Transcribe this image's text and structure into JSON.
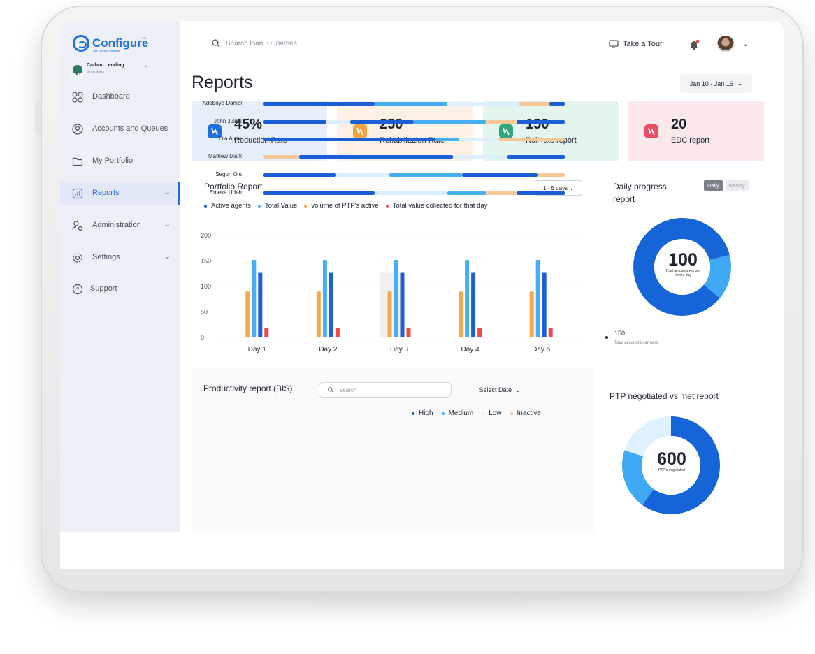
{
  "brand": {
    "name": "Configure",
    "tagline": "Core Lending Platform",
    "tm": "TM"
  },
  "org": {
    "initials": "CB",
    "name": "Carbon Lending",
    "members": "5 members"
  },
  "sidebar": {
    "items": [
      {
        "label": "Dashboard",
        "icon": "grid-icon"
      },
      {
        "label": "Accounts and Queues",
        "icon": "user-circle-icon"
      },
      {
        "label": "My Portfolio",
        "icon": "folder-icon"
      },
      {
        "label": "Reports",
        "icon": "chart-icon",
        "active": true
      },
      {
        "label": "Administration",
        "icon": "admin-icon"
      },
      {
        "label": "Settings",
        "icon": "gear-icon"
      },
      {
        "label": "Support",
        "icon": "help-icon"
      }
    ]
  },
  "header": {
    "search_placeholder": "Search loan ID, names...",
    "tour_label": "Take a Tour"
  },
  "page": {
    "title": "Reports",
    "date_range": "Jan 10 - Jan 16"
  },
  "stats": [
    {
      "value": "45%",
      "label": "Reduction Rate",
      "bg": "#e6eefb",
      "icon_color": "#1e6fe0"
    },
    {
      "value": "250",
      "label": "Rehabilitation Rate",
      "bg": "#fdf1e6",
      "icon_color": "#f4a340"
    },
    {
      "value": "150",
      "label": "Roll rate report",
      "bg": "#e4f5ee",
      "icon_color": "#2ea87a"
    },
    {
      "value": "20",
      "label": "EDC report",
      "bg": "#fbe8ea",
      "icon_color": "#ea4d63"
    }
  ],
  "portfolio": {
    "title": "Portfolio Report",
    "range": "1 - 5 days"
  },
  "chart_data": {
    "type": "bar",
    "title": "Portfolio Report",
    "categories": [
      "Day 1",
      "Day 2",
      "Day 3",
      "Day 4",
      "Day 5"
    ],
    "series": [
      {
        "name": "Active agents",
        "color": "#1e5fd8",
        "values": [
          128,
          128,
          128,
          128,
          128
        ]
      },
      {
        "name": "Total Value",
        "color": "#45aef5",
        "values": [
          152,
          152,
          152,
          152,
          152
        ]
      },
      {
        "name": "volume of PTP's active",
        "color": "#f6a94b",
        "values": [
          90,
          90,
          90,
          90,
          90
        ]
      },
      {
        "name": "Total value collected for that day",
        "color": "#ee4a4a",
        "values": [
          18,
          18,
          18,
          18,
          18
        ]
      }
    ],
    "series_order": [
      2,
      1,
      0,
      3
    ],
    "yticks": [
      "200",
      "150",
      "100",
      "50",
      "0"
    ],
    "ylim": [
      0,
      200
    ],
    "highlight_category": "Day 3",
    "grid": true,
    "legend": "top-left"
  },
  "daily": {
    "title": "Daily progress report",
    "toggle_daily": "Daily",
    "toggle_weekly": "weekly",
    "center_value": "100",
    "center_label": "Total accounts worked for the day",
    "share_main": 0.85,
    "share_secondary": 0.15,
    "color_main": "#1565d8",
    "color_secondary": "#3fa9f5",
    "stat_value": "150",
    "stat_label": "Total account in arrears"
  },
  "productivity": {
    "title": "Productivity report (BIS)",
    "search_placeholder": "Search",
    "select_label": "Select Date",
    "legend": [
      {
        "label": "High",
        "color": "#1a5fd6"
      },
      {
        "label": "Medium",
        "color": "#48aef2"
      },
      {
        "label": "Low",
        "color": "#dcefff"
      },
      {
        "label": "Inactive",
        "color": "#f8c797"
      }
    ],
    "rows": [
      {
        "name": "Adeboye Daniel",
        "segments": [
          [
            "high",
            0,
            37
          ],
          [
            "medium",
            37,
            61
          ],
          [
            "low",
            61,
            85
          ],
          [
            "inactive",
            85,
            95
          ],
          [
            "high",
            95,
            100
          ]
        ]
      },
      {
        "name": "John Julius",
        "segments": [
          [
            "high",
            0,
            21
          ],
          [
            "low",
            21,
            29
          ],
          [
            "high",
            29,
            50
          ],
          [
            "medium",
            50,
            74
          ],
          [
            "inactive",
            74,
            84
          ],
          [
            "high",
            84,
            100
          ]
        ]
      },
      {
        "name": "Ola Ajere",
        "segments": [
          [
            "high",
            0,
            57
          ],
          [
            "medium",
            57,
            65
          ],
          [
            "low",
            65,
            78
          ],
          [
            "inactive",
            78,
            100
          ]
        ]
      },
      {
        "name": "Mathew Mark",
        "segments": [
          [
            "inactive",
            0,
            12
          ],
          [
            "high",
            12,
            63
          ],
          [
            "low",
            63,
            81
          ],
          [
            "high",
            81,
            100
          ]
        ]
      },
      {
        "name": "Segun Olu",
        "segments": [
          [
            "high",
            0,
            24
          ],
          [
            "low",
            24,
            42
          ],
          [
            "medium",
            42,
            66
          ],
          [
            "high",
            66,
            91
          ],
          [
            "inactive",
            91,
            100
          ]
        ]
      },
      {
        "name": "Emeka Udeh",
        "segments": [
          [
            "high",
            0,
            37
          ],
          [
            "low",
            37,
            61
          ],
          [
            "medium",
            61,
            74
          ],
          [
            "inactive",
            74,
            84
          ],
          [
            "high",
            84,
            100
          ]
        ]
      }
    ]
  },
  "ptp": {
    "title": "PTP negotiated vs met report",
    "center_value": "600",
    "center_label": "PTP's negotiated",
    "share_main": 0.6,
    "share_secondary": 0.2,
    "share_tertiary": 0.2,
    "color_main": "#1565d8",
    "color_secondary": "#3fa9f5",
    "color_tertiary": "#dff0ff"
  },
  "colors": {
    "accent": "#1e6fe0",
    "sidebar_bg": "#eef0f8"
  }
}
